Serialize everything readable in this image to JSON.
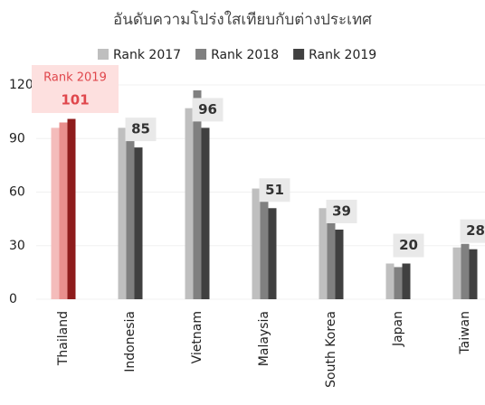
{
  "chart_data": {
    "type": "bar",
    "title": "อันดับความโปร่งใสเทียบกับต่างประเทศ",
    "annotation": "Rank 2019",
    "categories": [
      "Thailand",
      "Indonesia",
      "Vietnam",
      "Malaysia",
      "South Korea",
      "Japan",
      "Taiwan"
    ],
    "series": [
      {
        "name": "Rank 2017",
        "color": "#bfbfbf",
        "colors": [
          "#f4bcbb",
          "#bfbfbf",
          "#bfbfbf",
          "#bfbfbf",
          "#bfbfbf",
          "#bfbfbf",
          "#bfbfbf"
        ],
        "values": [
          96,
          96,
          107,
          62,
          51,
          20,
          29
        ]
      },
      {
        "name": "Rank 2018",
        "color": "#808080",
        "colors": [
          "#e98f8d",
          "#808080",
          "#808080",
          "#808080",
          "#808080",
          "#808080",
          "#808080"
        ],
        "values": [
          99,
          89,
          117,
          61,
          45,
          18,
          31
        ]
      },
      {
        "name": "Rank 2019",
        "color": "#404040",
        "colors": [
          "#8e1c1c",
          "#404040",
          "#404040",
          "#404040",
          "#404040",
          "#404040",
          "#404040"
        ],
        "values": [
          101,
          85,
          96,
          51,
          39,
          20,
          28
        ]
      }
    ],
    "ylim": [
      0,
      120
    ],
    "yticks": [
      0,
      30,
      60,
      90,
      120
    ],
    "grid": true
  }
}
